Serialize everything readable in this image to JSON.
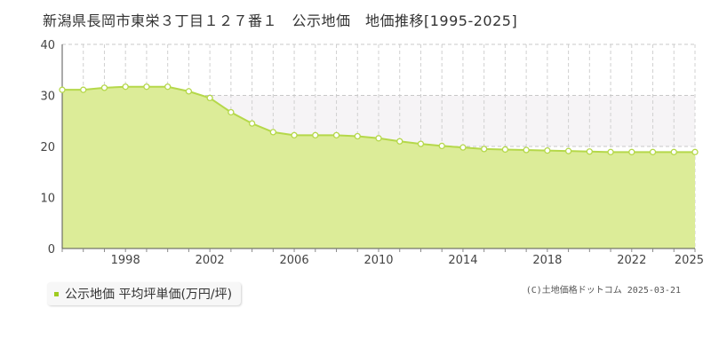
{
  "title": "新潟県長岡市東栄３丁目１２７番１　公示地価　地価推移[1995-2025]",
  "legend_label": "公示地価 平均坪単価(万円/坪)",
  "credit": "(C)土地価格ドットコム 2025-03-21",
  "colors": {
    "area": "#dcec98",
    "line": "#b5d84a",
    "legend": "#9fcb20",
    "band": "#f6f4f6"
  },
  "chart_data": {
    "type": "area",
    "title": "新潟県長岡市東栄３丁目１２７番１　公示地価　地価推移[1995-2025]",
    "xlabel": "",
    "ylabel": "",
    "xlim": [
      1995,
      2025
    ],
    "ylim": [
      0,
      40
    ],
    "yticks": [
      0,
      10,
      20,
      30,
      40
    ],
    "xticks": [
      1998,
      2002,
      2006,
      2010,
      2014,
      2018,
      2022,
      2025
    ],
    "grid": true,
    "legend": "bottom-left",
    "series": [
      {
        "name": "公示地価 平均坪単価(万円/坪)",
        "x": [
          1995,
          1996,
          1997,
          1998,
          1999,
          2000,
          2001,
          2002,
          2003,
          2004,
          2005,
          2006,
          2007,
          2008,
          2009,
          2010,
          2011,
          2012,
          2013,
          2014,
          2015,
          2016,
          2017,
          2018,
          2019,
          2020,
          2021,
          2022,
          2023,
          2024,
          2025
        ],
        "values": [
          31.1,
          31.1,
          31.5,
          31.7,
          31.7,
          31.7,
          30.8,
          29.5,
          26.7,
          24.5,
          22.8,
          22.2,
          22.2,
          22.2,
          22.0,
          21.6,
          21.0,
          20.5,
          20.1,
          19.8,
          19.5,
          19.4,
          19.3,
          19.2,
          19.1,
          19.0,
          18.9,
          18.9,
          18.9,
          18.9,
          18.9
        ]
      }
    ]
  }
}
